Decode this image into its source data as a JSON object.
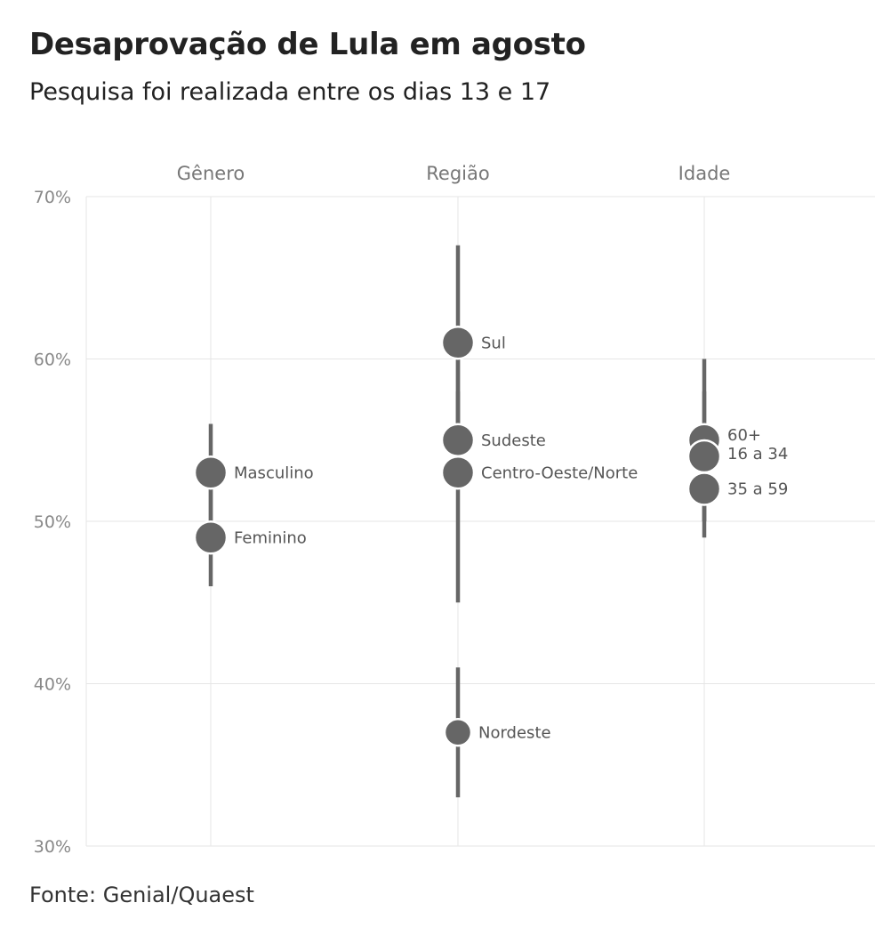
{
  "title": "Desaprovação de Lula em agosto",
  "subtitle": "Pesquisa foi realizada entre os dias 13 e 17",
  "source": "Fonte: Genial/Quaest",
  "chart_data": {
    "type": "scatter",
    "title": "Desaprovação de Lula em agosto",
    "subtitle": "Pesquisa foi realizada entre os dias 13 e 17",
    "ylim": [
      30,
      70
    ],
    "y_ticks": [
      30,
      40,
      50,
      60,
      70
    ],
    "y_tick_labels": [
      "30%",
      "40%",
      "50%",
      "60%",
      "70%"
    ],
    "grid": true,
    "color": "#666666",
    "facets": [
      {
        "name": "Gênero",
        "points": [
          {
            "label": "Masculino",
            "value": 53,
            "low": 50,
            "high": 56,
            "size": "large"
          },
          {
            "label": "Feminino",
            "value": 49,
            "low": 46,
            "high": 52,
            "size": "large"
          }
        ]
      },
      {
        "name": "Região",
        "points": [
          {
            "label": "Sul",
            "value": 61,
            "low": 55,
            "high": 67,
            "size": "large"
          },
          {
            "label": "Sudeste",
            "value": 55,
            "low": 52,
            "high": 58,
            "size": "large"
          },
          {
            "label": "Centro-Oeste/Norte",
            "value": 53,
            "low": 45,
            "high": 61,
            "size": "large"
          },
          {
            "label": "Nordeste",
            "value": 37,
            "low": 33,
            "high": 41,
            "size": "medium"
          }
        ]
      },
      {
        "name": "Idade",
        "points": [
          {
            "label": "60+",
            "value": 55,
            "low": 50,
            "high": 60,
            "size": "large"
          },
          {
            "label": "16 a 34",
            "value": 54,
            "low": 50,
            "high": 58,
            "size": "large"
          },
          {
            "label": "35 a 59",
            "value": 52,
            "low": 49,
            "high": 55,
            "size": "large"
          }
        ]
      }
    ]
  }
}
